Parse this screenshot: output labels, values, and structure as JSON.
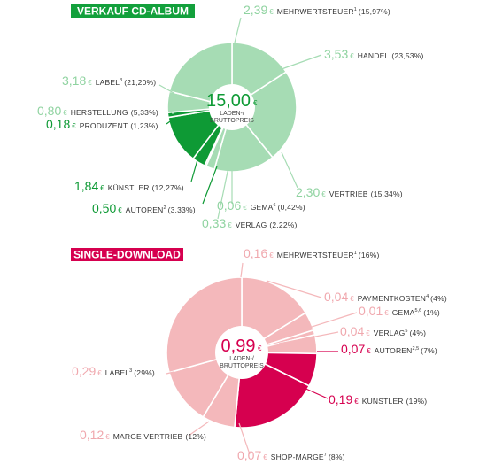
{
  "chart_data": [
    {
      "type": "pie",
      "title": "VERKAUF CD-ALBUM",
      "center_value": "15,00",
      "center_currency": "€",
      "center_sub": [
        "LADEN-/",
        "BRUTTOPREIS"
      ],
      "colors": {
        "title_bg": "#13a03c",
        "light": "#a6dcb4",
        "dark": "#0e9a35",
        "light_text": "#8fd3a0",
        "dark_text": "#0e9a35"
      },
      "slices": [
        {
          "label": "MEHRWERTSTEUER",
          "sup": "1",
          "value": 2.39,
          "value_text": "2,39",
          "pct_text": "(15,97%)",
          "emphasis": "light"
        },
        {
          "label": "HANDEL",
          "sup": "",
          "value": 3.53,
          "value_text": "3,53",
          "pct_text": "(23,53%)",
          "emphasis": "light"
        },
        {
          "label": "VERTRIEB",
          "sup": "",
          "value": 2.3,
          "value_text": "2,30",
          "pct_text": "(15,34%)",
          "emphasis": "light"
        },
        {
          "label": "VERLAG",
          "sup": "",
          "value": 0.33,
          "value_text": "0,33",
          "pct_text": "(2,22%)",
          "emphasis": "light"
        },
        {
          "label": "GEMA",
          "sup": "6",
          "value": 0.06,
          "value_text": "0,06",
          "pct_text": "(0,42%)",
          "emphasis": "light"
        },
        {
          "label": "AUTOREN",
          "sup": "2",
          "value": 0.5,
          "value_text": "0,50",
          "pct_text": "(3,33%)",
          "emphasis": "dark"
        },
        {
          "label": "KÜNSTLER",
          "sup": "",
          "value": 1.84,
          "value_text": "1,84",
          "pct_text": "(12,27%)",
          "emphasis": "dark"
        },
        {
          "label": "PRODUZENT",
          "sup": "",
          "value": 0.18,
          "value_text": "0,18",
          "pct_text": "(1,23%)",
          "emphasis": "dark"
        },
        {
          "label": "HERSTELLUNG",
          "sup": "",
          "value": 0.8,
          "value_text": "0,80",
          "pct_text": "(5,33%)",
          "emphasis": "light"
        },
        {
          "label": "LABEL",
          "sup": "3",
          "value": 3.18,
          "value_text": "3,18",
          "pct_text": "(21,20%)",
          "emphasis": "light"
        }
      ]
    },
    {
      "type": "pie",
      "title": "SINGLE-DOWNLOAD",
      "center_value": "0,99",
      "center_currency": "€",
      "center_sub": [
        "LADEN-/",
        "BRUTTOPREIS"
      ],
      "colors": {
        "title_bg": "#d6004f",
        "light": "#f4b8bb",
        "dark": "#d6004f",
        "light_text": "#f0a8ae",
        "dark_text": "#d6004f"
      },
      "slices": [
        {
          "label": "MEHRWERTSTEUER",
          "sup": "1",
          "value": 0.16,
          "value_text": "0,16",
          "pct_text": "(16%)",
          "emphasis": "light"
        },
        {
          "label": "PAYMENTKOSTEN",
          "sup": "4",
          "value": 0.04,
          "value_text": "0,04",
          "pct_text": "(4%)",
          "emphasis": "light"
        },
        {
          "label": "GEMA",
          "sup": "5,6",
          "value": 0.01,
          "value_text": "0,01",
          "pct_text": "(1%)",
          "emphasis": "light"
        },
        {
          "label": "VERLAG",
          "sup": "5",
          "value": 0.04,
          "value_text": "0,04",
          "pct_text": "(4%)",
          "emphasis": "light"
        },
        {
          "label": "AUTOREN",
          "sup": "2,5",
          "value": 0.07,
          "value_text": "0,07",
          "pct_text": "(7%)",
          "emphasis": "dark"
        },
        {
          "label": "KÜNSTLER",
          "sup": "",
          "value": 0.19,
          "value_text": "0,19",
          "pct_text": "(19%)",
          "emphasis": "dark"
        },
        {
          "label": "SHOP-MARGE",
          "sup": "7",
          "value": 0.07,
          "value_text": "0,07",
          "pct_text": "(8%)",
          "emphasis": "light"
        },
        {
          "label": "MARGE VERTRIEB",
          "sup": "",
          "value": 0.12,
          "value_text": "0,12",
          "pct_text": "(12%)",
          "emphasis": "light"
        },
        {
          "label": "LABEL",
          "sup": "3",
          "value": 0.29,
          "value_text": "0,29",
          "pct_text": "(29%)",
          "emphasis": "light"
        }
      ]
    }
  ]
}
